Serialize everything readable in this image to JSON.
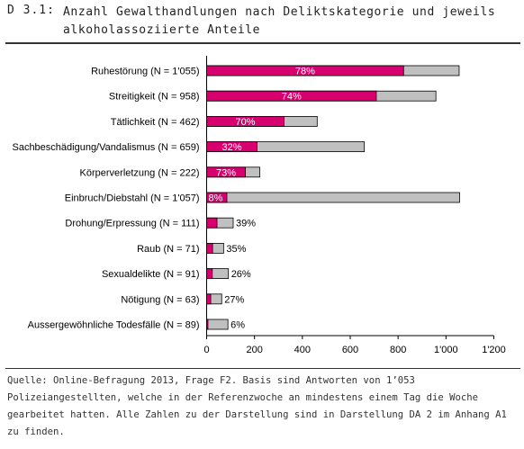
{
  "header": {
    "id": "D 3.1:",
    "title": "Anzahl Gewalthandlungen nach Deliktskategorie und jeweils alkoholassoziierte Anteile"
  },
  "source_note": "Quelle: Online-Befragung 2013, Frage F2. Basis sind Antworten von 1’053 Polizeiangestellten, welche in der Referenzwoche an mindestens einem Tag die Woche gearbeitet hatten. Alle Zahlen zu der Darstellung sind in Darstellung DA 2 im Anhang A1 zu finden.",
  "chart_data": {
    "type": "bar",
    "orientation": "horizontal",
    "stacked": true,
    "title": "Anzahl Gewalthandlungen nach Deliktskategorie und jeweils alkoholassoziierte Anteile",
    "categories": [
      "Ruhestörung (N = 1'055)",
      "Streitigkeit (N = 958)",
      "Tätlichkeit (N = 462)",
      "Sachbeschädigung/Vandalismus (N = 659)",
      "Körperverletzung (N = 222)",
      "Einbruch/Diebstahl (N = 1'057)",
      "Drohung/Erpressung (N = 111)",
      "Raub (N = 71)",
      "Sexualdelikte (N = 91)",
      "Nötigung (N = 63)",
      "Aussergewöhnliche Todesfälle (N = 89)"
    ],
    "totals": [
      1055,
      958,
      462,
      659,
      222,
      1057,
      111,
      71,
      91,
      63,
      89
    ],
    "percent_labels": [
      "78%",
      "74%",
      "70%",
      "32%",
      "73%",
      "8%",
      "39%",
      "35%",
      "26%",
      "27%",
      "6%"
    ],
    "percent_values": [
      78,
      74,
      70,
      32,
      73,
      8,
      39,
      35,
      26,
      27,
      6
    ],
    "label_inside": [
      true,
      true,
      true,
      true,
      true,
      true,
      false,
      false,
      false,
      false,
      false
    ],
    "xlim": [
      0,
      1200
    ],
    "xticks": [
      "0",
      "200",
      "400",
      "600",
      "800",
      "1'000",
      "1'200"
    ],
    "xtick_values": [
      0,
      200,
      400,
      600,
      800,
      1000,
      1200
    ],
    "colors": {
      "alcohol": "#d6006f",
      "remainder": "#c0c0c0",
      "outline": "#000000"
    }
  }
}
